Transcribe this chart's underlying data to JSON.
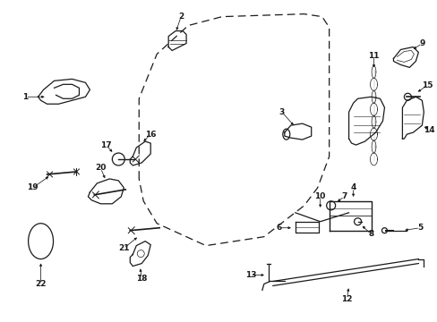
{
  "background_color": "#ffffff",
  "line_color": "#1a1a1a",
  "figsize": [
    4.89,
    3.6
  ],
  "dpi": 100,
  "door_shape": {
    "x": [
      0.305,
      0.305,
      0.335,
      0.37,
      0.42,
      0.62,
      0.68,
      0.72,
      0.72,
      0.68,
      0.5,
      0.39,
      0.36,
      0.33,
      0.305
    ],
    "y": [
      0.38,
      0.72,
      0.82,
      0.88,
      0.92,
      0.93,
      0.91,
      0.84,
      0.6,
      0.46,
      0.32,
      0.26,
      0.28,
      0.33,
      0.38
    ]
  }
}
